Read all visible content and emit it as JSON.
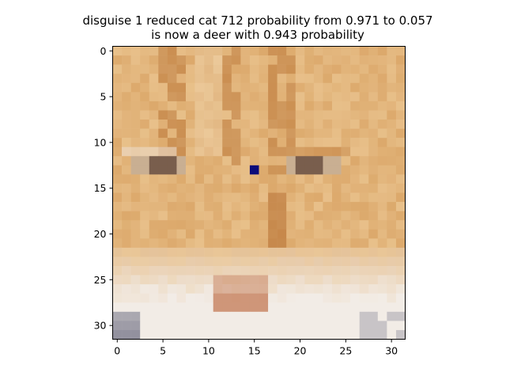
{
  "title": {
    "line1": "disguise 1 reduced cat 712 probability from 0.971 to 0.057",
    "line2": "is now a deer with 0.943 probability"
  },
  "axes": {
    "x_ticks": [
      "0",
      "5",
      "10",
      "15",
      "20",
      "25",
      "30"
    ],
    "y_ticks": [
      "0",
      "5",
      "10",
      "15",
      "20",
      "25",
      "30"
    ],
    "image_size": [
      32,
      32
    ]
  },
  "image": {
    "description_icon": "cat-face-pixel-image",
    "palette": {
      "fur_light": "#e8c08a",
      "fur_mid": "#d9a364",
      "fur_dark": "#bd7a3c",
      "fur_pale": "#f1d8b4",
      "white": "#f2ece6",
      "nose": "#c98766",
      "eye": "#6c5042",
      "shadow": "#7a7a8c",
      "perturbed_pixel": "#0b0b7a"
    },
    "perturbed_pixel": {
      "row": 13,
      "col": 15
    }
  }
}
